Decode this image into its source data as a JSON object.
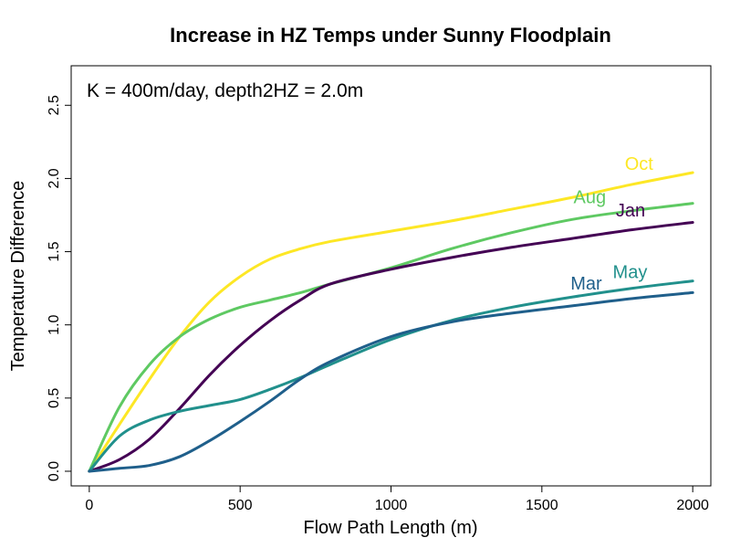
{
  "chart_data": {
    "type": "line",
    "title": "Increase in HZ Temps under Sunny Floodplain",
    "xlabel": "Flow Path Length (m)",
    "ylabel": "Temperature Difference",
    "annotation": "K = 400m/day, depth2HZ = 2.0m",
    "xlim": [
      -60,
      2060
    ],
    "ylim": [
      -0.1,
      2.77
    ],
    "x_ticks": [
      0,
      500,
      1000,
      1500,
      2000
    ],
    "x_tick_labels": [
      "0",
      "500",
      "1000",
      "1500",
      "2000"
    ],
    "y_ticks": [
      0.0,
      0.5,
      1.0,
      1.5,
      2.0,
      2.5
    ],
    "y_tick_labels": [
      "0.0",
      "0.5",
      "1.0",
      "1.5",
      "2.0",
      "2.5"
    ],
    "grid": false,
    "legend": "none",
    "x": [
      0,
      100,
      200,
      300,
      400,
      500,
      600,
      700,
      800,
      1000,
      1200,
      1400,
      1600,
      1800,
      2000
    ],
    "series": [
      {
        "name": "Oct",
        "color": "#FDE725",
        "values": [
          0.0,
          0.32,
          0.63,
          0.92,
          1.16,
          1.33,
          1.45,
          1.52,
          1.57,
          1.64,
          1.71,
          1.79,
          1.87,
          1.96,
          2.04
        ]
      },
      {
        "name": "Aug",
        "color": "#5EC962",
        "values": [
          0.0,
          0.44,
          0.73,
          0.92,
          1.04,
          1.12,
          1.17,
          1.22,
          1.28,
          1.39,
          1.52,
          1.63,
          1.72,
          1.78,
          1.83
        ]
      },
      {
        "name": "Jan",
        "color": "#440154",
        "values": [
          0.0,
          0.08,
          0.22,
          0.43,
          0.66,
          0.86,
          1.03,
          1.17,
          1.28,
          1.38,
          1.46,
          1.53,
          1.59,
          1.65,
          1.7
        ]
      },
      {
        "name": "May",
        "color": "#21908C",
        "values": [
          0.0,
          0.24,
          0.35,
          0.41,
          0.45,
          0.49,
          0.56,
          0.64,
          0.73,
          0.9,
          1.03,
          1.12,
          1.19,
          1.25,
          1.3
        ]
      },
      {
        "name": "Mar",
        "color": "#1F5F8B",
        "values": [
          0.0,
          0.02,
          0.04,
          0.1,
          0.21,
          0.34,
          0.48,
          0.63,
          0.75,
          0.92,
          1.02,
          1.08,
          1.13,
          1.18,
          1.22
        ]
      }
    ],
    "series_labels": [
      {
        "text": "Oct",
        "x": 1775,
        "y": 2.06
      },
      {
        "text": "Aug",
        "x": 1605,
        "y": 1.83
      },
      {
        "text": "Jan",
        "x": 1745,
        "y": 1.74
      },
      {
        "text": "May",
        "x": 1735,
        "y": 1.32
      },
      {
        "text": "Mar",
        "x": 1595,
        "y": 1.24
      }
    ]
  }
}
